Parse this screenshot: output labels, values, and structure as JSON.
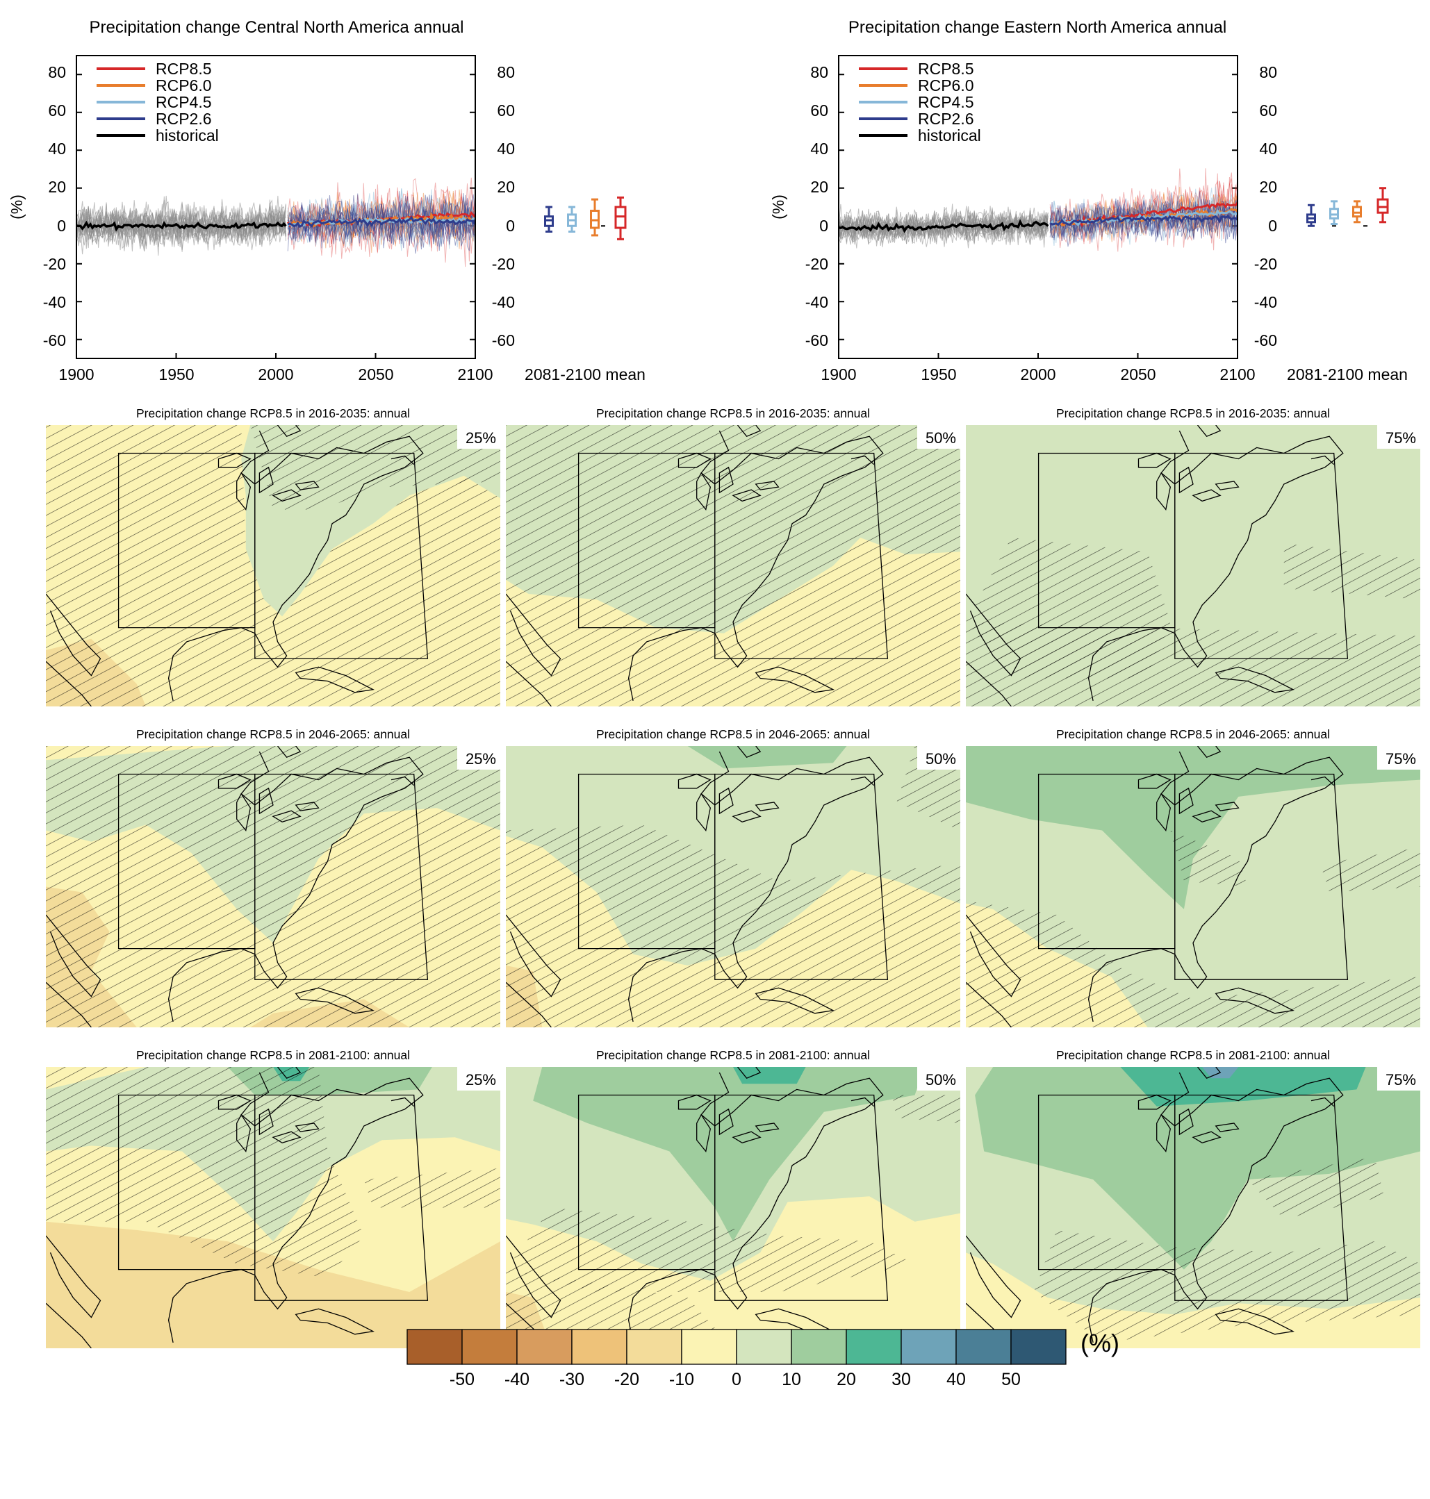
{
  "colors": {
    "rcp85": "#d62728",
    "rcp60": "#e87d2c",
    "rcp45": "#86b7d8",
    "rcp26": "#2e3c8c",
    "historical": "#000000",
    "historical_ens": "#8c8c8c",
    "colorbar": [
      "#a85f2a",
      "#c47d3c",
      "#d89c5e",
      "#eec279",
      "#f3dc9a",
      "#fbf3b4",
      "#d4e5be",
      "#9fcd9e",
      "#4db794",
      "#6ea3b8",
      "#4b7f96",
      "#2e5873"
    ]
  },
  "timeseries": [
    {
      "title": "Precipitation change Central North America annual",
      "ylabel": "(%)",
      "xticks": [
        "1900",
        "1950",
        "2000",
        "2050",
        "2100"
      ],
      "yticks": [
        "-60",
        "-40",
        "-20",
        "0",
        "20",
        "40",
        "60",
        "80"
      ],
      "legend": [
        "RCP8.5",
        "RCP6.0",
        "RCP4.5",
        "RCP2.6",
        "historical"
      ],
      "mean_label": "2081-2100 mean"
    },
    {
      "title": "Precipitation change Eastern North America annual",
      "ylabel": "(%)",
      "xticks": [
        "1900",
        "1950",
        "2000",
        "2050",
        "2100"
      ],
      "yticks": [
        "-60",
        "-40",
        "-20",
        "0",
        "20",
        "40",
        "60",
        "80"
      ],
      "legend": [
        "RCP8.5",
        "RCP6.0",
        "RCP4.5",
        "RCP2.6",
        "historical"
      ],
      "mean_label": "2081-2100 mean"
    }
  ],
  "maps": {
    "rows": [
      {
        "title": "Precipitation change RCP8.5 in 2016-2035: annual"
      },
      {
        "title": "Precipitation change RCP8.5 in 2046-2065: annual"
      },
      {
        "title": "Precipitation change RCP8.5 in 2081-2100: annual"
      }
    ],
    "percentiles": [
      "25%",
      "50%",
      "75%"
    ]
  },
  "colorbar": {
    "ticks": [
      "-50",
      "-40",
      "-30",
      "-20",
      "-10",
      "0",
      "10",
      "20",
      "30",
      "40",
      "50"
    ],
    "unit": "(%)"
  },
  "chart_data": [
    {
      "type": "line",
      "title": "Precipitation change Central North America annual",
      "xlabel": "",
      "ylabel": "(%)",
      "xlim": [
        1900,
        2100
      ],
      "ylim": [
        -70,
        90
      ],
      "series": [
        {
          "name": "historical",
          "x": [
            1900,
            1920,
            1940,
            1960,
            1980,
            2005
          ],
          "values": [
            0,
            0,
            0,
            0,
            0,
            1
          ]
        },
        {
          "name": "RCP2.6",
          "x": [
            2006,
            2030,
            2050,
            2075,
            2100
          ],
          "values": [
            1,
            2,
            2,
            3,
            2
          ]
        },
        {
          "name": "RCP4.5",
          "x": [
            2006,
            2030,
            2050,
            2075,
            2100
          ],
          "values": [
            1,
            2,
            3,
            3,
            3
          ]
        },
        {
          "name": "RCP6.0",
          "x": [
            2006,
            2030,
            2050,
            2075,
            2100
          ],
          "values": [
            1,
            2,
            3,
            4,
            4
          ]
        },
        {
          "name": "RCP8.5",
          "x": [
            2006,
            2030,
            2050,
            2075,
            2100
          ],
          "values": [
            1,
            2,
            3,
            5,
            6
          ]
        }
      ],
      "box_2081_2100": [
        {
          "name": "RCP2.6",
          "min": -3,
          "q1": 0,
          "median": 3,
          "q3": 5,
          "max": 10
        },
        {
          "name": "RCP4.5",
          "min": -3,
          "q1": 0,
          "median": 3,
          "q3": 6,
          "max": 10
        },
        {
          "name": "RCP6.0",
          "min": -5,
          "q1": -1,
          "median": 3,
          "q3": 8,
          "max": 14
        },
        {
          "name": "RCP8.5",
          "min": -7,
          "q1": -1,
          "median": 5,
          "q3": 10,
          "max": 15
        }
      ]
    },
    {
      "type": "line",
      "title": "Precipitation change Eastern North America annual",
      "xlabel": "",
      "ylabel": "(%)",
      "xlim": [
        1900,
        2100
      ],
      "ylim": [
        -70,
        90
      ],
      "series": [
        {
          "name": "historical",
          "x": [
            1900,
            1920,
            1940,
            1960,
            1980,
            2005
          ],
          "values": [
            -1,
            -1,
            -1,
            0,
            0,
            1
          ]
        },
        {
          "name": "RCP2.6",
          "x": [
            2006,
            2030,
            2050,
            2075,
            2100
          ],
          "values": [
            1,
            3,
            4,
            4,
            4
          ]
        },
        {
          "name": "RCP4.5",
          "x": [
            2006,
            2030,
            2050,
            2075,
            2100
          ],
          "values": [
            1,
            3,
            4,
            6,
            7
          ]
        },
        {
          "name": "RCP6.0",
          "x": [
            2006,
            2030,
            2050,
            2075,
            2100
          ],
          "values": [
            1,
            3,
            4,
            6,
            8
          ]
        },
        {
          "name": "RCP8.5",
          "x": [
            2006,
            2030,
            2050,
            2075,
            2100
          ],
          "values": [
            1,
            3,
            6,
            9,
            12
          ]
        }
      ],
      "box_2081_2100": [
        {
          "name": "RCP2.6",
          "min": 0,
          "q1": 2,
          "median": 4,
          "q3": 6,
          "max": 11
        },
        {
          "name": "RCP4.5",
          "min": 1,
          "q1": 4,
          "median": 6,
          "q3": 9,
          "max": 13
        },
        {
          "name": "RCP6.0",
          "min": 2,
          "q1": 5,
          "median": 7,
          "q3": 10,
          "max": 13
        },
        {
          "name": "RCP8.5",
          "min": 2,
          "q1": 7,
          "median": 10,
          "q3": 14,
          "max": 20
        }
      ]
    },
    {
      "type": "heatmap",
      "title": "Precipitation change RCP8.5 in 2016-2035: annual / 2046-2065: annual / 2081-2100: annual",
      "columns": [
        "25%",
        "50%",
        "75%"
      ],
      "legend_ticks": [
        -50,
        -40,
        -30,
        -20,
        -10,
        0,
        10,
        20,
        30,
        40,
        50
      ]
    }
  ]
}
